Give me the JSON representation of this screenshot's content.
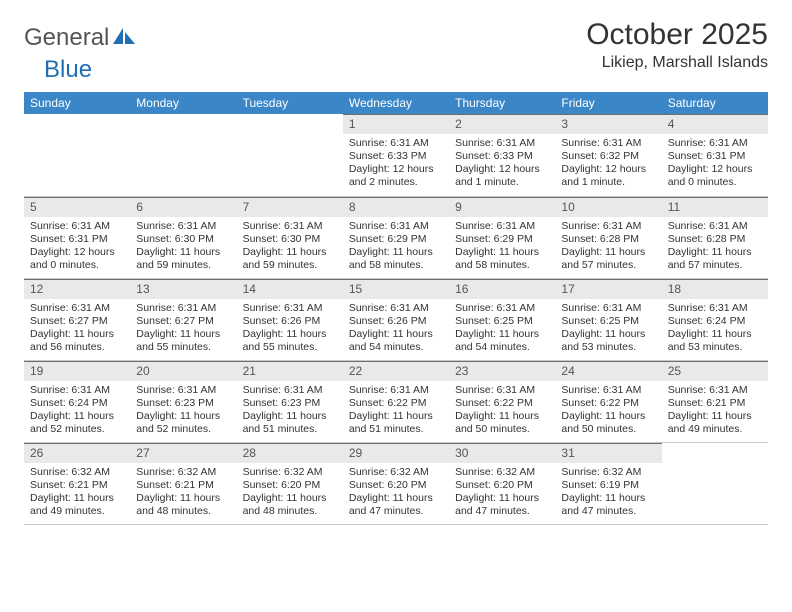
{
  "brand": {
    "part1": "General",
    "part2": "Blue"
  },
  "title": "October 2025",
  "location": "Likiep, Marshall Islands",
  "colors": {
    "header_bg": "#3b86c6",
    "header_text": "#ffffff",
    "daynum_bg": "#e9e9e9",
    "daynum_border": "#6f6f6f",
    "cell_border": "#c9c9c9",
    "body_text": "#333333",
    "logo_blue": "#1f6fb2"
  },
  "weekdays": [
    "Sunday",
    "Monday",
    "Tuesday",
    "Wednesday",
    "Thursday",
    "Friday",
    "Saturday"
  ],
  "weeks": [
    [
      null,
      null,
      null,
      {
        "n": "1",
        "sunrise": "6:31 AM",
        "sunset": "6:33 PM",
        "daylight": "12 hours and 2 minutes."
      },
      {
        "n": "2",
        "sunrise": "6:31 AM",
        "sunset": "6:33 PM",
        "daylight": "12 hours and 1 minute."
      },
      {
        "n": "3",
        "sunrise": "6:31 AM",
        "sunset": "6:32 PM",
        "daylight": "12 hours and 1 minute."
      },
      {
        "n": "4",
        "sunrise": "6:31 AM",
        "sunset": "6:31 PM",
        "daylight": "12 hours and 0 minutes."
      }
    ],
    [
      {
        "n": "5",
        "sunrise": "6:31 AM",
        "sunset": "6:31 PM",
        "daylight": "12 hours and 0 minutes."
      },
      {
        "n": "6",
        "sunrise": "6:31 AM",
        "sunset": "6:30 PM",
        "daylight": "11 hours and 59 minutes."
      },
      {
        "n": "7",
        "sunrise": "6:31 AM",
        "sunset": "6:30 PM",
        "daylight": "11 hours and 59 minutes."
      },
      {
        "n": "8",
        "sunrise": "6:31 AM",
        "sunset": "6:29 PM",
        "daylight": "11 hours and 58 minutes."
      },
      {
        "n": "9",
        "sunrise": "6:31 AM",
        "sunset": "6:29 PM",
        "daylight": "11 hours and 58 minutes."
      },
      {
        "n": "10",
        "sunrise": "6:31 AM",
        "sunset": "6:28 PM",
        "daylight": "11 hours and 57 minutes."
      },
      {
        "n": "11",
        "sunrise": "6:31 AM",
        "sunset": "6:28 PM",
        "daylight": "11 hours and 57 minutes."
      }
    ],
    [
      {
        "n": "12",
        "sunrise": "6:31 AM",
        "sunset": "6:27 PM",
        "daylight": "11 hours and 56 minutes."
      },
      {
        "n": "13",
        "sunrise": "6:31 AM",
        "sunset": "6:27 PM",
        "daylight": "11 hours and 55 minutes."
      },
      {
        "n": "14",
        "sunrise": "6:31 AM",
        "sunset": "6:26 PM",
        "daylight": "11 hours and 55 minutes."
      },
      {
        "n": "15",
        "sunrise": "6:31 AM",
        "sunset": "6:26 PM",
        "daylight": "11 hours and 54 minutes."
      },
      {
        "n": "16",
        "sunrise": "6:31 AM",
        "sunset": "6:25 PM",
        "daylight": "11 hours and 54 minutes."
      },
      {
        "n": "17",
        "sunrise": "6:31 AM",
        "sunset": "6:25 PM",
        "daylight": "11 hours and 53 minutes."
      },
      {
        "n": "18",
        "sunrise": "6:31 AM",
        "sunset": "6:24 PM",
        "daylight": "11 hours and 53 minutes."
      }
    ],
    [
      {
        "n": "19",
        "sunrise": "6:31 AM",
        "sunset": "6:24 PM",
        "daylight": "11 hours and 52 minutes."
      },
      {
        "n": "20",
        "sunrise": "6:31 AM",
        "sunset": "6:23 PM",
        "daylight": "11 hours and 52 minutes."
      },
      {
        "n": "21",
        "sunrise": "6:31 AM",
        "sunset": "6:23 PM",
        "daylight": "11 hours and 51 minutes."
      },
      {
        "n": "22",
        "sunrise": "6:31 AM",
        "sunset": "6:22 PM",
        "daylight": "11 hours and 51 minutes."
      },
      {
        "n": "23",
        "sunrise": "6:31 AM",
        "sunset": "6:22 PM",
        "daylight": "11 hours and 50 minutes."
      },
      {
        "n": "24",
        "sunrise": "6:31 AM",
        "sunset": "6:22 PM",
        "daylight": "11 hours and 50 minutes."
      },
      {
        "n": "25",
        "sunrise": "6:31 AM",
        "sunset": "6:21 PM",
        "daylight": "11 hours and 49 minutes."
      }
    ],
    [
      {
        "n": "26",
        "sunrise": "6:32 AM",
        "sunset": "6:21 PM",
        "daylight": "11 hours and 49 minutes."
      },
      {
        "n": "27",
        "sunrise": "6:32 AM",
        "sunset": "6:21 PM",
        "daylight": "11 hours and 48 minutes."
      },
      {
        "n": "28",
        "sunrise": "6:32 AM",
        "sunset": "6:20 PM",
        "daylight": "11 hours and 48 minutes."
      },
      {
        "n": "29",
        "sunrise": "6:32 AM",
        "sunset": "6:20 PM",
        "daylight": "11 hours and 47 minutes."
      },
      {
        "n": "30",
        "sunrise": "6:32 AM",
        "sunset": "6:20 PM",
        "daylight": "11 hours and 47 minutes."
      },
      {
        "n": "31",
        "sunrise": "6:32 AM",
        "sunset": "6:19 PM",
        "daylight": "11 hours and 47 minutes."
      },
      null
    ]
  ],
  "labels": {
    "sunrise": "Sunrise:",
    "sunset": "Sunset:",
    "daylight": "Daylight:"
  }
}
